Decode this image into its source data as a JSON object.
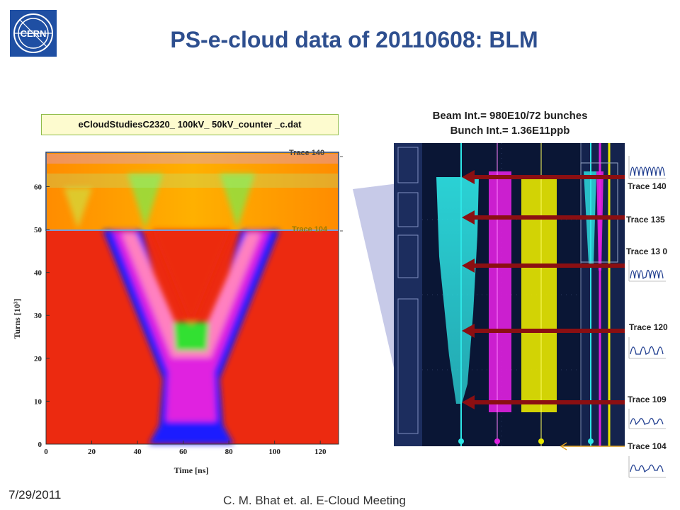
{
  "header": {
    "title": "PS-e-cloud data of 20110608: BLM",
    "logo_text": "CERN"
  },
  "left_panel": {
    "file_label": "eCloudStudiesC2320_ 100kV_ 50kV_counter _c.dat",
    "trace_top_label": "Trace 140",
    "trace_bottom_label": "Trace 104",
    "ylabel": "Turns [10³]",
    "xlabel": "Time [ns]"
  },
  "right_panel": {
    "beam_line1": "Beam Int.= 980E10/72 bunches",
    "beam_line2": "Bunch Int.= 1.36E11ppb",
    "trace_labels": [
      "Trace 140",
      "Trace 135",
      "Trace 13 0",
      "Trace 120",
      "Trace 109",
      "Trace 104"
    ],
    "colors": {
      "arrow": "#8b0f12",
      "cyan": "#2ee6e6",
      "magenta": "#e020e0",
      "yellow": "#f0f000"
    }
  },
  "chart_data": {
    "type": "heatmap",
    "x_ticks": [
      "0",
      "20",
      "40",
      "60",
      "80",
      "100",
      "120"
    ],
    "y_ticks": [
      "0",
      "10",
      "20",
      "30",
      "40",
      "50",
      "60"
    ],
    "xlim": [
      0,
      128
    ],
    "ylim": [
      0,
      68
    ],
    "xlabel": "Time [ns]",
    "ylabel": "Turns [10³]",
    "bands": [
      {
        "from": 50,
        "to": 68,
        "label_top": "Trace 140",
        "label_bottom": "Trace 104"
      }
    ]
  },
  "footer": {
    "date": "7/29/2011",
    "author": "C. M. Bhat et. al. E-Cloud Meeting"
  }
}
